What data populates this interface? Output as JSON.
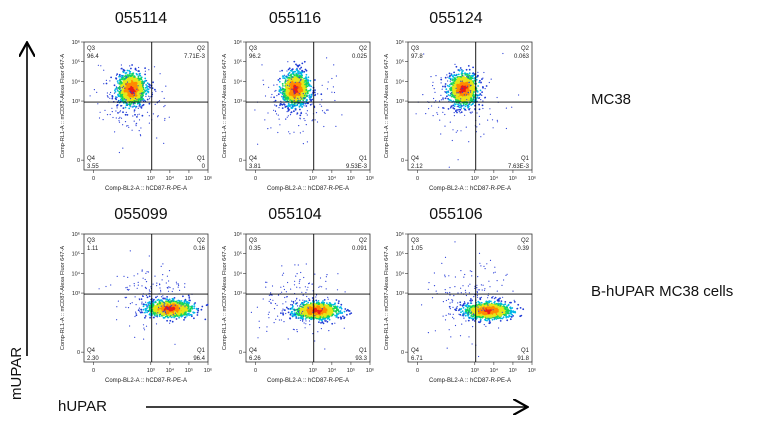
{
  "figure": {
    "row_labels": [
      "MC38",
      "B-hUPAR MC38 cells"
    ],
    "y_axis_title": "mUPAR",
    "x_axis_title": "hUPAR"
  },
  "plot_axes": {
    "x_label": "Comp-BL2-A :: hCD87-R-PE-A",
    "y_label": "Comp-RL1-A :: mCD87-Alexa Fluor 647-A",
    "x_ticks": [
      "0",
      "10³",
      "10⁴",
      "10⁵",
      "10⁶"
    ],
    "y_ticks": [
      "0",
      "10³",
      "10⁴",
      "10⁵",
      "10⁶"
    ]
  },
  "chart_data": [
    {
      "type": "scatter",
      "sample": "055114",
      "row": "MC38",
      "gate_x": 3.05,
      "gate_y": 2.95,
      "quadrants": {
        "Q1": "0",
        "Q2": "7.71E-3",
        "Q3": "96.4",
        "Q4": "3.55"
      },
      "population_center": [
        2.0,
        3.6
      ]
    },
    {
      "type": "scatter",
      "sample": "055116",
      "row": "MC38",
      "gate_x": 3.05,
      "gate_y": 2.95,
      "quadrants": {
        "Q1": "9.53E-3",
        "Q2": "0.025",
        "Q3": "96.2",
        "Q4": "3.81"
      },
      "population_center": [
        2.1,
        3.6
      ]
    },
    {
      "type": "scatter",
      "sample": "055124",
      "row": "MC38",
      "gate_x": 3.05,
      "gate_y": 2.95,
      "quadrants": {
        "Q1": "7.63E-3",
        "Q2": "0.063",
        "Q3": "97.8",
        "Q4": "2.12"
      },
      "population_center": [
        2.4,
        3.6
      ]
    },
    {
      "type": "scatter",
      "sample": "055099",
      "row": "B-hUPAR MC38 cells",
      "gate_x": 3.05,
      "gate_y": 2.95,
      "quadrants": {
        "Q1": "96.4",
        "Q2": "0.16",
        "Q3": "1.11",
        "Q4": "2.30"
      },
      "population_center": [
        4.0,
        2.2
      ]
    },
    {
      "type": "scatter",
      "sample": "055104",
      "row": "B-hUPAR MC38 cells",
      "gate_x": 3.05,
      "gate_y": 2.95,
      "quadrants": {
        "Q1": "93.3",
        "Q2": "0.091",
        "Q3": "0.35",
        "Q4": "6.26"
      },
      "population_center": [
        3.2,
        2.1
      ]
    },
    {
      "type": "scatter",
      "sample": "055106",
      "row": "B-hUPAR MC38 cells",
      "gate_x": 3.05,
      "gate_y": 2.95,
      "quadrants": {
        "Q1": "91.8",
        "Q2": "0.39",
        "Q3": "1.05",
        "Q4": "6.71"
      },
      "population_center": [
        3.7,
        2.1
      ]
    }
  ]
}
